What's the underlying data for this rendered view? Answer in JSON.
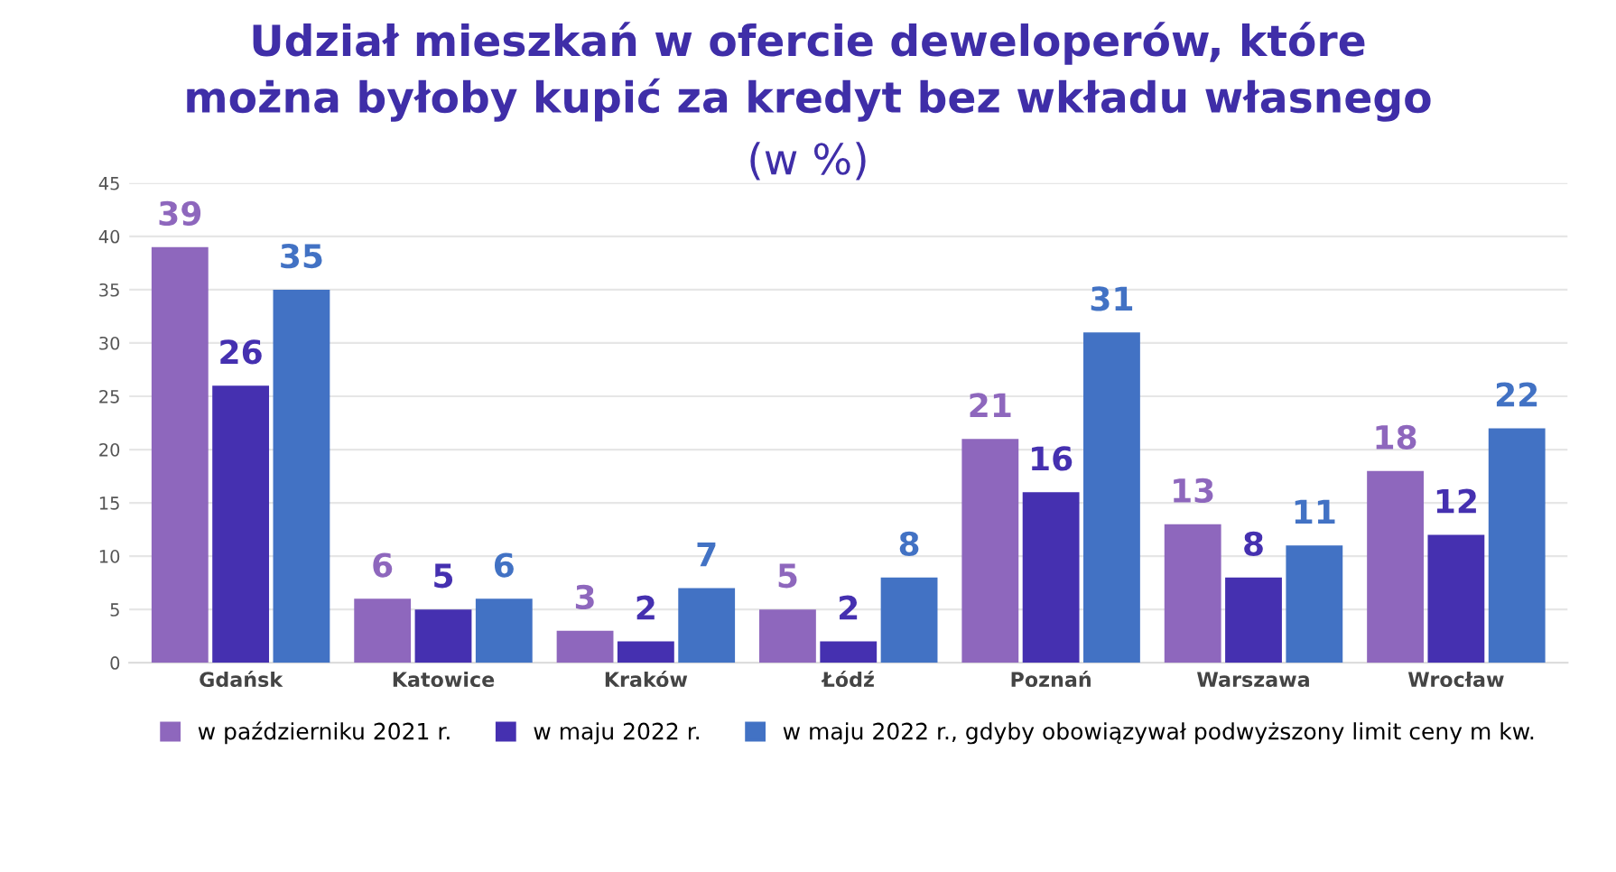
{
  "chart_data": {
    "type": "bar",
    "title": "Udział mieszkań w ofercie deweloperów, które\nmożna byłoby kupić za kredyt bez wkładu własnego",
    "subtitle": "(w %)",
    "categories": [
      "Gdańsk",
      "Katowice",
      "Kraków",
      "Łódź",
      "Poznań",
      "Warszawa",
      "Wrocław"
    ],
    "series": [
      {
        "name": "w październiku 2021 r.",
        "color": "#8e67bd",
        "values": [
          39,
          6,
          3,
          5,
          21,
          13,
          18
        ]
      },
      {
        "name": "w maju 2022 r.",
        "color": "#4530b0",
        "values": [
          26,
          5,
          2,
          2,
          16,
          8,
          12
        ]
      },
      {
        "name": "w maju 2022 r., gdyby obowiązywał podwyższony limit ceny m kw.",
        "color": "#4272c4",
        "values": [
          35,
          6,
          7,
          8,
          31,
          11,
          22
        ]
      }
    ],
    "ylim": [
      0,
      45
    ],
    "yticks": [
      0,
      5,
      10,
      15,
      20,
      25,
      30,
      35,
      40,
      45
    ],
    "grid": "y",
    "legend": "bottom",
    "data_labels": true
  }
}
